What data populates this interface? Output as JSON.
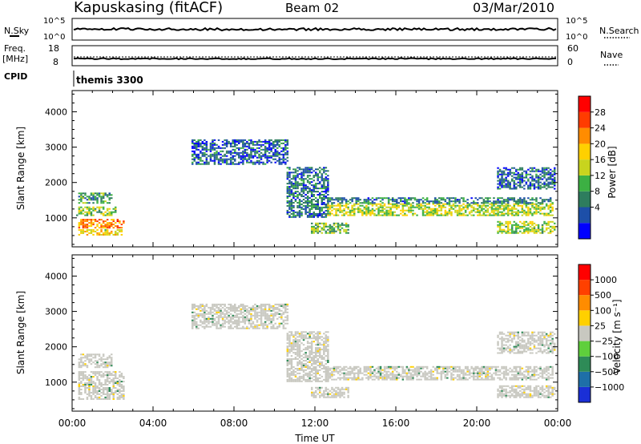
{
  "header": {
    "station": "Kapuskasing (fitACF)",
    "beam": "Beam 02",
    "date": "03/Mar/2010"
  },
  "summary": {
    "nsky_label": "N.Sky",
    "nsky_ticks": [
      "10^5",
      "10^0"
    ],
    "nsearch_label": "N.Search",
    "nsearch_ticks": [
      "10^5",
      "10^0"
    ],
    "freq_label": "Freq.",
    "freq_unit": "[MHz]",
    "freq_ticks": [
      "18",
      "8"
    ],
    "nave_label": "Nave",
    "nave_ticks": [
      "60",
      "0"
    ],
    "cpid_label": "CPID",
    "cpid_value": "themis 3300"
  },
  "power_panel": {
    "ylabel": "Slant Range [km]",
    "colorbar_label": "Power [dB]",
    "colorbar_ticks": [
      "28",
      "24",
      "20",
      "16",
      "12",
      "8",
      "4"
    ],
    "colors": [
      "#0000ff",
      "#1d4fa8",
      "#2e7d5e",
      "#3cb043",
      "#c8d41e",
      "#ffd000",
      "#ff8c00",
      "#ff3c00",
      "#ff0000"
    ]
  },
  "velocity_panel": {
    "ylabel": "Slant Range [km]",
    "colorbar_label": "Velocity [m s⁻¹]",
    "colorbar_ticks": [
      "1000",
      "500",
      "100",
      "25",
      "−25",
      "−100",
      "−500",
      "−1000"
    ],
    "colors": [
      "#1a2fd6",
      "#1e6fa8",
      "#2e8b57",
      "#5fcf3c",
      "#c8c8c0",
      "#ffd000",
      "#ff8c00",
      "#ff4000",
      "#ff0000"
    ]
  },
  "xaxis": {
    "label": "Time UT",
    "ticks": [
      "00:00",
      "04:00",
      "08:00",
      "12:00",
      "16:00",
      "20:00",
      "00:00"
    ]
  },
  "chart_data": [
    {
      "type": "heatmap",
      "title": "Power",
      "xlabel": "Time UT",
      "ylabel": "Slant Range [km]",
      "xlim": [
        0,
        24
      ],
      "ylim": [
        180,
        4600
      ],
      "yticks": [
        1000,
        2000,
        3000,
        4000
      ],
      "colorbar_range": [
        0,
        30
      ],
      "bands": [
        {
          "t0": 0.3,
          "t1": 2.5,
          "r0": 500,
          "r1": 650,
          "value": 18
        },
        {
          "t0": 0.3,
          "t1": 2.6,
          "r0": 700,
          "r1": 950,
          "value": 22
        },
        {
          "t0": 0.2,
          "t1": 2.2,
          "r0": 1050,
          "r1": 1300,
          "value": 14
        },
        {
          "t0": 0.3,
          "t1": 2.0,
          "r0": 1400,
          "r1": 1700,
          "value": 10
        },
        {
          "t0": 5.9,
          "t1": 10.6,
          "r0": 2500,
          "r1": 3200,
          "value": 6
        },
        {
          "t0": 10.6,
          "t1": 12.6,
          "r0": 1000,
          "r1": 2400,
          "value": 7
        },
        {
          "t0": 12.6,
          "t1": 23.8,
          "r0": 1050,
          "r1": 1400,
          "value": 15
        },
        {
          "t0": 12.6,
          "t1": 23.8,
          "r0": 1400,
          "r1": 1550,
          "value": 8
        },
        {
          "t0": 11.8,
          "t1": 13.6,
          "r0": 550,
          "r1": 850,
          "value": 12
        },
        {
          "t0": 21.0,
          "t1": 23.9,
          "r0": 550,
          "r1": 900,
          "value": 14
        },
        {
          "t0": 21.0,
          "t1": 23.9,
          "r0": 1800,
          "r1": 2400,
          "value": 6
        }
      ]
    },
    {
      "type": "heatmap",
      "title": "Velocity",
      "xlabel": "Time UT",
      "ylabel": "Slant Range [km]",
      "xlim": [
        0,
        24
      ],
      "ylim": [
        180,
        4600
      ],
      "yticks": [
        1000,
        2000,
        3000,
        4000
      ],
      "colorbar_range": [
        -1000,
        1000
      ],
      "bands": [
        {
          "t0": 0.3,
          "t1": 2.6,
          "r0": 500,
          "r1": 1300,
          "value": 0
        },
        {
          "t0": 0.3,
          "t1": 2.0,
          "r0": 1400,
          "r1": 1800,
          "value": 0
        },
        {
          "t0": 5.9,
          "t1": 10.6,
          "r0": 2500,
          "r1": 3200,
          "value": 0
        },
        {
          "t0": 10.6,
          "t1": 12.6,
          "r0": 1000,
          "r1": 2400,
          "value": 0
        },
        {
          "t0": 12.6,
          "t1": 23.8,
          "r0": 1050,
          "r1": 1450,
          "value": 0
        },
        {
          "t0": 11.8,
          "t1": 13.6,
          "r0": 550,
          "r1": 850,
          "value": 0
        },
        {
          "t0": 21.0,
          "t1": 23.9,
          "r0": 550,
          "r1": 900,
          "value": 0
        },
        {
          "t0": 21.0,
          "t1": 23.9,
          "r0": 1800,
          "r1": 2400,
          "value": 0
        }
      ]
    }
  ]
}
